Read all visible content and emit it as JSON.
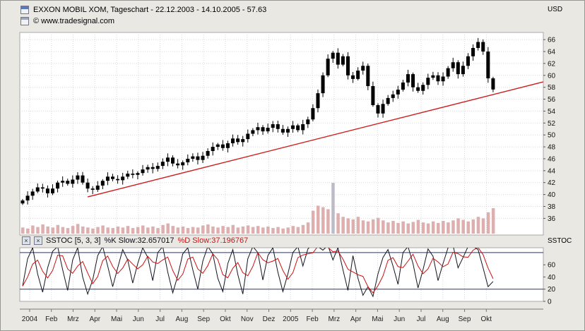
{
  "header": {
    "title": "EXXON MOBIL XOM, Tageschart - 22.12.2003 - 14.10.2005 - 57.63",
    "copyright": "© www.tradesignal.com"
  },
  "axes": {
    "price_unit": "USD"
  },
  "stoch": {
    "unit_label": "SSTOC",
    "name": "SSTOC [5, 3, 3]",
    "k_label": "%K Slow:32.657017",
    "d_label": "%D Slow:37.196767"
  },
  "icons": {
    "close_glyph": "×"
  },
  "colors": {
    "trendline": "#cc2020",
    "candle": "#000000",
    "volume": "#ddafaf",
    "volume_spike": "#bcbcc8",
    "stoch_k": "#14141e",
    "stoch_d": "#cc1111",
    "threshold": "#23357d",
    "grid": "#d9d9d9",
    "axis": "#777777"
  },
  "chart_data": [
    {
      "type": "candlestick",
      "title": "EXXON MOBIL XOM, Tageschart",
      "period": "22.12.2003 - 14.10.2005",
      "last_price": 57.63,
      "unit": "USD",
      "ylim": [
        33.2,
        67.2
      ],
      "y_ticks": [
        66,
        64,
        62,
        60,
        58,
        56,
        54,
        52,
        50,
        48,
        46,
        44,
        42,
        40,
        38,
        36
      ],
      "x_monthly_labels": [
        "2004",
        "Feb",
        "Mrz",
        "Apr",
        "Mai",
        "Jun",
        "Jul",
        "Aug",
        "Sep",
        "Okt",
        "Nov",
        "Dez",
        "2005",
        "Feb",
        "Mrz",
        "Apr",
        "Mai",
        "Jun",
        "Jul",
        "Aug",
        "Sep",
        "Okt"
      ],
      "weekly_closes": [
        39.0,
        39.8,
        40.5,
        41.2,
        41.0,
        40.2,
        41.0,
        42.0,
        42.3,
        41.8,
        42.5,
        43.2,
        42.0,
        41.0,
        40.8,
        41.5,
        42.3,
        43.0,
        42.6,
        42.4,
        43.0,
        43.5,
        43.3,
        43.6,
        44.2,
        44.6,
        44.3,
        44.8,
        45.5,
        46.2,
        45.2,
        44.9,
        45.4,
        46.0,
        46.4,
        45.8,
        46.5,
        47.3,
        48.0,
        48.4,
        47.8,
        48.6,
        49.4,
        48.8,
        49.3,
        50.2,
        50.8,
        51.3,
        50.6,
        51.2,
        51.8,
        51.0,
        50.4,
        51.0,
        51.6,
        50.8,
        51.8,
        52.6,
        54.5,
        57.0,
        60.0,
        62.8,
        63.8,
        61.8,
        63.2,
        60.0,
        59.4,
        60.8,
        61.6,
        58.2,
        55.0,
        53.6,
        55.2,
        56.2,
        56.8,
        57.6,
        58.8,
        60.2,
        58.0,
        57.4,
        58.4,
        59.6,
        60.0,
        59.0,
        59.8,
        61.2,
        62.2,
        60.2,
        61.6,
        63.2,
        64.6,
        65.6,
        64.0,
        59.5,
        57.63
      ],
      "volumes_relative": [
        0.12,
        0.1,
        0.16,
        0.13,
        0.18,
        0.14,
        0.12,
        0.17,
        0.13,
        0.11,
        0.15,
        0.19,
        0.14,
        0.12,
        0.1,
        0.13,
        0.16,
        0.12,
        0.11,
        0.14,
        0.12,
        0.15,
        0.11,
        0.13,
        0.16,
        0.12,
        0.14,
        0.11,
        0.17,
        0.2,
        0.15,
        0.12,
        0.14,
        0.11,
        0.13,
        0.12,
        0.16,
        0.18,
        0.14,
        0.12,
        0.15,
        0.13,
        0.17,
        0.12,
        0.14,
        0.16,
        0.13,
        0.15,
        0.12,
        0.14,
        0.11,
        0.13,
        0.1,
        0.12,
        0.15,
        0.13,
        0.17,
        0.22,
        0.45,
        0.55,
        0.52,
        0.48,
        1.0,
        0.4,
        0.33,
        0.3,
        0.28,
        0.33,
        0.26,
        0.24,
        0.28,
        0.31,
        0.26,
        0.22,
        0.25,
        0.21,
        0.24,
        0.2,
        0.23,
        0.27,
        0.22,
        0.2,
        0.24,
        0.21,
        0.25,
        0.22,
        0.26,
        0.3,
        0.27,
        0.24,
        0.28,
        0.33,
        0.3,
        0.42,
        0.5
      ],
      "trendline": {
        "start_week": 13,
        "start_price": 39.6,
        "end_week": 104,
        "end_price": 58.9
      }
    },
    {
      "type": "line",
      "title": "SSTOC [5, 3, 3]",
      "ylim": [
        0,
        88
      ],
      "y_ticks": [
        60,
        40,
        20,
        0
      ],
      "thresholds": [
        20,
        80
      ],
      "series": [
        {
          "name": "%K Slow",
          "last": 32.657017,
          "values": [
            25,
            70,
            88,
            45,
            15,
            55,
            82,
            90,
            52,
            18,
            68,
            88,
            40,
            12,
            35,
            75,
            90,
            58,
            24,
            55,
            85,
            68,
            30,
            62,
            88,
            72,
            34,
            80,
            90,
            48,
            14,
            42,
            78,
            88,
            52,
            20,
            66,
            90,
            78,
            38,
            16,
            62,
            85,
            44,
            12,
            70,
            90,
            80,
            35,
            75,
            88,
            48,
            16,
            45,
            80,
            90,
            58,
            86,
            95,
            90,
            84,
            92,
            68,
            88,
            52,
            18,
            75,
            38,
            10,
            24,
            8,
            45,
            72,
            85,
            58,
            28,
            80,
            90,
            62,
            22,
            52,
            86,
            74,
            34,
            62,
            88,
            92,
            55,
            72,
            90,
            90,
            85,
            55,
            24,
            32.66
          ]
        },
        {
          "name": "%D Slow",
          "last": 37.196767
        }
      ]
    }
  ]
}
